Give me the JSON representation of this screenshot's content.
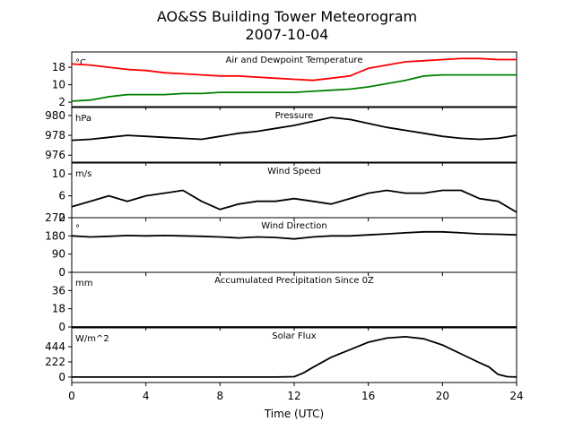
{
  "figure": {
    "title_line1": "AO&SS Building Tower Meteorogram",
    "title_line2": "2007-10-04",
    "xlabel": "Time (UTC)"
  },
  "chart_data": [
    {
      "type": "line",
      "title": "Air and Dewpoint Temperature",
      "unit": "°C",
      "ylim": [
        0,
        25
      ],
      "yticks": [
        2,
        10,
        18
      ],
      "xlim": [
        0,
        24
      ],
      "xticks": [
        0,
        4,
        8,
        12,
        16,
        20,
        24
      ],
      "series": [
        {
          "color": "#ff0000",
          "x": [
            0,
            1,
            2,
            3,
            4,
            5,
            6,
            7,
            8,
            9,
            10,
            11,
            12,
            13,
            14,
            15,
            16,
            17,
            18,
            19,
            20,
            21,
            22,
            23,
            24
          ],
          "y": [
            19.5,
            19,
            18,
            17,
            16.5,
            15.5,
            15,
            14.5,
            14,
            14,
            13.5,
            13,
            12.5,
            12,
            13,
            14,
            17.5,
            19,
            20.5,
            21,
            21.5,
            22,
            22,
            21.5,
            21.5
          ]
        },
        {
          "color": "#008000",
          "x": [
            0,
            1,
            2,
            3,
            4,
            5,
            6,
            7,
            8,
            9,
            10,
            11,
            12,
            13,
            14,
            15,
            16,
            17,
            18,
            19,
            20,
            21,
            22,
            23,
            24
          ],
          "y": [
            2.5,
            3,
            4.5,
            5.5,
            5.5,
            5.5,
            6,
            6,
            6.5,
            6.5,
            6.5,
            6.5,
            6.5,
            7,
            7.5,
            8,
            9,
            10.5,
            12,
            14,
            14.5,
            14.5,
            14.5,
            14.5,
            14.5
          ]
        }
      ]
    },
    {
      "type": "line",
      "title": "Pressure",
      "unit": "hPa",
      "ylim": [
        975.3,
        980.8
      ],
      "yticks": [
        976,
        978,
        980
      ],
      "xlim": [
        0,
        24
      ],
      "series": [
        {
          "color": "#000000",
          "x": [
            0,
            1,
            2,
            3,
            4,
            5,
            6,
            7,
            8,
            9,
            10,
            11,
            12,
            13,
            14,
            15,
            16,
            17,
            18,
            19,
            20,
            21,
            22,
            23,
            24
          ],
          "y": [
            977.5,
            977.6,
            977.8,
            978.0,
            977.9,
            977.8,
            977.7,
            977.6,
            977.9,
            978.2,
            978.4,
            978.7,
            979.0,
            979.4,
            979.8,
            979.6,
            979.2,
            978.8,
            978.5,
            978.2,
            977.9,
            977.7,
            977.6,
            977.7,
            978.0
          ]
        }
      ]
    },
    {
      "type": "line",
      "title": "Wind Speed",
      "unit": "m/s",
      "ylim": [
        2,
        12
      ],
      "yticks": [
        2,
        6,
        10
      ],
      "xlim": [
        0,
        24
      ],
      "series": [
        {
          "color": "#000000",
          "x": [
            0,
            1,
            2,
            3,
            4,
            5,
            6,
            7,
            8,
            9,
            10,
            11,
            12,
            13,
            14,
            15,
            16,
            17,
            18,
            19,
            20,
            21,
            22,
            23,
            24
          ],
          "y": [
            4,
            5,
            6,
            5,
            6,
            6.5,
            7,
            5,
            3.5,
            4.5,
            5,
            5,
            5.5,
            5,
            4.5,
            5.5,
            6.5,
            7,
            6.5,
            6.5,
            7,
            7,
            5.5,
            5,
            3
          ]
        }
      ]
    },
    {
      "type": "line",
      "title": "Wind Direction",
      "unit": "°",
      "ylim": [
        0,
        270
      ],
      "yticks": [
        0,
        90,
        180,
        270
      ],
      "xlim": [
        0,
        24
      ],
      "series": [
        {
          "color": "#000000",
          "x": [
            0,
            1,
            2,
            3,
            4,
            5,
            6,
            7,
            8,
            9,
            10,
            11,
            12,
            13,
            14,
            15,
            16,
            17,
            18,
            19,
            20,
            21,
            22,
            23,
            24
          ],
          "y": [
            180,
            175,
            178,
            182,
            180,
            182,
            180,
            178,
            175,
            170,
            175,
            172,
            165,
            175,
            180,
            180,
            185,
            190,
            195,
            200,
            200,
            195,
            190,
            188,
            185
          ]
        }
      ]
    },
    {
      "type": "line",
      "title": "Accumulated Precipitation Since 0Z",
      "unit": "mm",
      "ylim": [
        0,
        54
      ],
      "yticks": [
        0,
        18,
        36
      ],
      "xlim": [
        0,
        24
      ],
      "series": [
        {
          "color": "#000000",
          "x": [
            0,
            24
          ],
          "y": [
            0,
            0
          ]
        }
      ]
    },
    {
      "type": "line",
      "title": "Solar Flux",
      "unit": "W/m^2",
      "ylim": [
        -80,
        720
      ],
      "yticks": [
        0,
        222,
        444
      ],
      "xlim": [
        0,
        24
      ],
      "series": [
        {
          "color": "#000000",
          "x": [
            0,
            11,
            12,
            12.5,
            13,
            14,
            15,
            16,
            17,
            18,
            19,
            20,
            21,
            22,
            22.5,
            23,
            23.5,
            24
          ],
          "y": [
            0,
            0,
            5,
            60,
            140,
            290,
            400,
            510,
            570,
            590,
            560,
            470,
            340,
            210,
            150,
            40,
            5,
            0
          ]
        }
      ]
    }
  ]
}
